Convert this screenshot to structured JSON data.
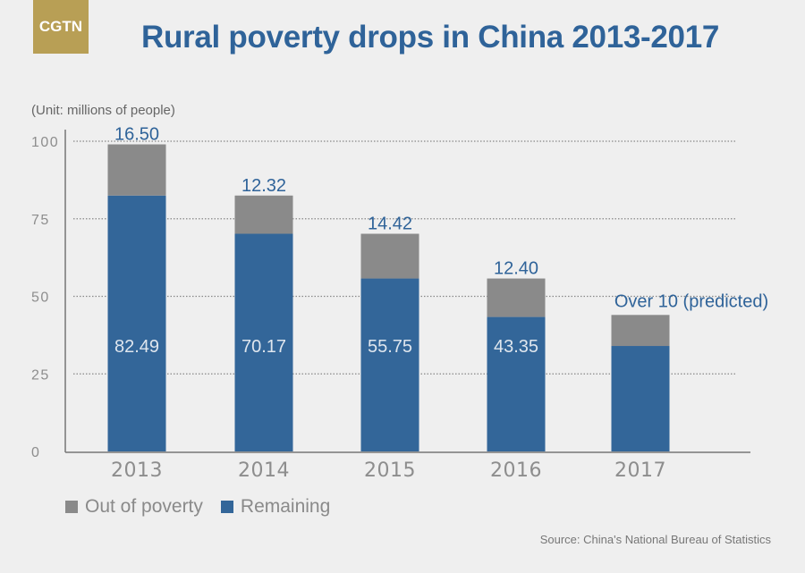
{
  "logo": {
    "text": "CGTN",
    "color": "#b89f55"
  },
  "title": "Rural poverty drops in China 2013-2017",
  "unit_label": "(Unit: millions of people)",
  "legend": [
    {
      "label": "Out of poverty",
      "color": "#8a8a8a"
    },
    {
      "label": "Remaining",
      "color": "#336699"
    }
  ],
  "source": "Source: China's National Bureau of Statistics",
  "chart_data": {
    "type": "bar",
    "stacked": true,
    "title": "Rural poverty drops in China 2013-2017",
    "xlabel": "",
    "ylabel": "(Unit: millions of people)",
    "ylim": [
      0,
      100
    ],
    "yticks": [
      0,
      25,
      50,
      75,
      100
    ],
    "grid": true,
    "legend_position": "bottom-left",
    "categories": [
      "2013",
      "2014",
      "2015",
      "2016",
      "2017"
    ],
    "series": [
      {
        "name": "Remaining",
        "color": "#336699",
        "values": [
          82.49,
          70.17,
          55.75,
          43.35,
          34
        ],
        "labels": [
          "82.49",
          "70.17",
          "55.75",
          "43.35",
          ""
        ]
      },
      {
        "name": "Out of poverty",
        "color": "#8a8a8a",
        "values": [
          16.5,
          12.32,
          14.42,
          12.4,
          10
        ],
        "labels": [
          "16.50",
          "12.32",
          "14.42",
          "12.40",
          "Over 10 (predicted)"
        ]
      }
    ],
    "annotations": [
      "Over 10 (predicted)"
    ]
  }
}
